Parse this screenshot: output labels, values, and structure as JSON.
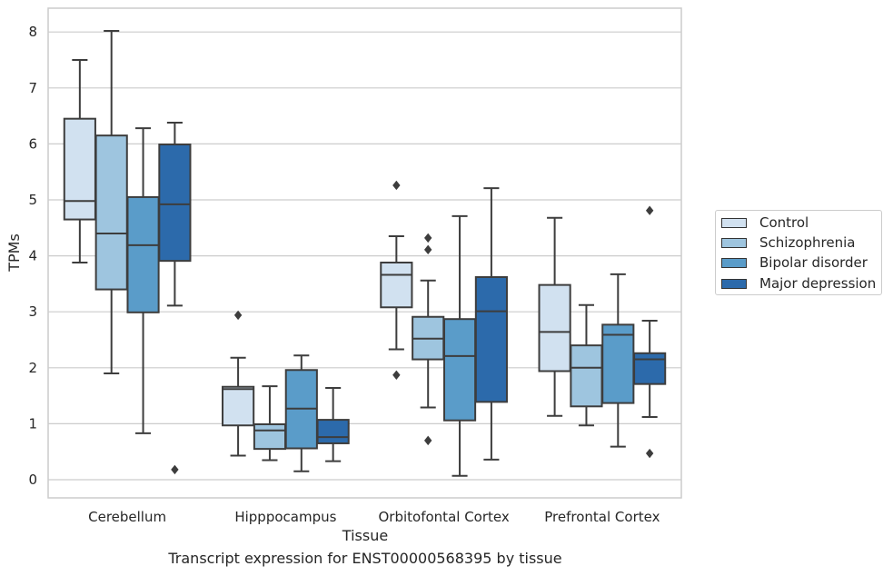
{
  "chart_data": {
    "type": "box",
    "title": "",
    "caption": "Transcript expression for ENST00000568395 by tissue",
    "xlabel": "Tissue",
    "ylabel": "TPMs",
    "ylim": [
      -0.3,
      8.4
    ],
    "yticks": [
      "0",
      "1",
      "2",
      "3",
      "4",
      "5",
      "6",
      "7",
      "8"
    ],
    "grid": "horizontal",
    "legend_position": "right",
    "categories": [
      "Cerebellum",
      "Hipppocampus",
      "Orbitofontal Cortex",
      "Prefrontal Cortex"
    ],
    "series": [
      {
        "name": "Control",
        "color": "#d1e1f0",
        "boxes": [
          {
            "min": 3.88,
            "q1": 4.65,
            "median": 4.98,
            "q3": 6.45,
            "max": 7.5,
            "outliers": []
          },
          {
            "min": 0.43,
            "q1": 0.97,
            "median": 1.62,
            "q3": 1.66,
            "max": 2.18,
            "outliers": [
              2.94
            ]
          },
          {
            "min": 2.33,
            "q1": 3.08,
            "median": 3.66,
            "q3": 3.88,
            "max": 4.35,
            "outliers": [
              5.26,
              1.87
            ]
          },
          {
            "min": 1.14,
            "q1": 1.94,
            "median": 2.64,
            "q3": 3.48,
            "max": 4.68,
            "outliers": []
          }
        ]
      },
      {
        "name": "Schizophrenia",
        "color": "#9ec5df",
        "boxes": [
          {
            "min": 1.9,
            "q1": 3.4,
            "median": 4.4,
            "q3": 6.15,
            "max": 8.02,
            "outliers": []
          },
          {
            "min": 0.35,
            "q1": 0.55,
            "median": 0.88,
            "q3": 0.99,
            "max": 1.67,
            "outliers": []
          },
          {
            "min": 1.29,
            "q1": 2.15,
            "median": 2.52,
            "q3": 2.91,
            "max": 3.56,
            "outliers": [
              4.32,
              4.11,
              0.7
            ]
          },
          {
            "min": 0.97,
            "q1": 1.31,
            "median": 2.0,
            "q3": 2.4,
            "max": 3.12,
            "outliers": []
          }
        ]
      },
      {
        "name": "Bipolar disorder",
        "color": "#5a9cc9",
        "boxes": [
          {
            "min": 0.83,
            "q1": 2.99,
            "median": 4.19,
            "q3": 5.05,
            "max": 6.28,
            "outliers": []
          },
          {
            "min": 0.15,
            "q1": 0.56,
            "median": 1.27,
            "q3": 1.96,
            "max": 2.22,
            "outliers": []
          },
          {
            "min": 0.07,
            "q1": 1.06,
            "median": 2.21,
            "q3": 2.87,
            "max": 4.71,
            "outliers": []
          },
          {
            "min": 0.59,
            "q1": 1.37,
            "median": 2.59,
            "q3": 2.77,
            "max": 3.67,
            "outliers": []
          }
        ]
      },
      {
        "name": "Major depression",
        "color": "#2c6aab",
        "boxes": [
          {
            "min": 3.11,
            "q1": 3.91,
            "median": 4.92,
            "q3": 5.99,
            "max": 6.38,
            "outliers": [
              0.18
            ]
          },
          {
            "min": 0.33,
            "q1": 0.65,
            "median": 0.76,
            "q3": 1.07,
            "max": 1.64,
            "outliers": []
          },
          {
            "min": 0.36,
            "q1": 1.39,
            "median": 3.01,
            "q3": 3.62,
            "max": 5.21,
            "outliers": []
          },
          {
            "min": 1.12,
            "q1": 1.71,
            "median": 2.15,
            "q3": 2.26,
            "max": 2.84,
            "outliers": [
              4.81,
              0.47
            ]
          }
        ]
      }
    ]
  }
}
